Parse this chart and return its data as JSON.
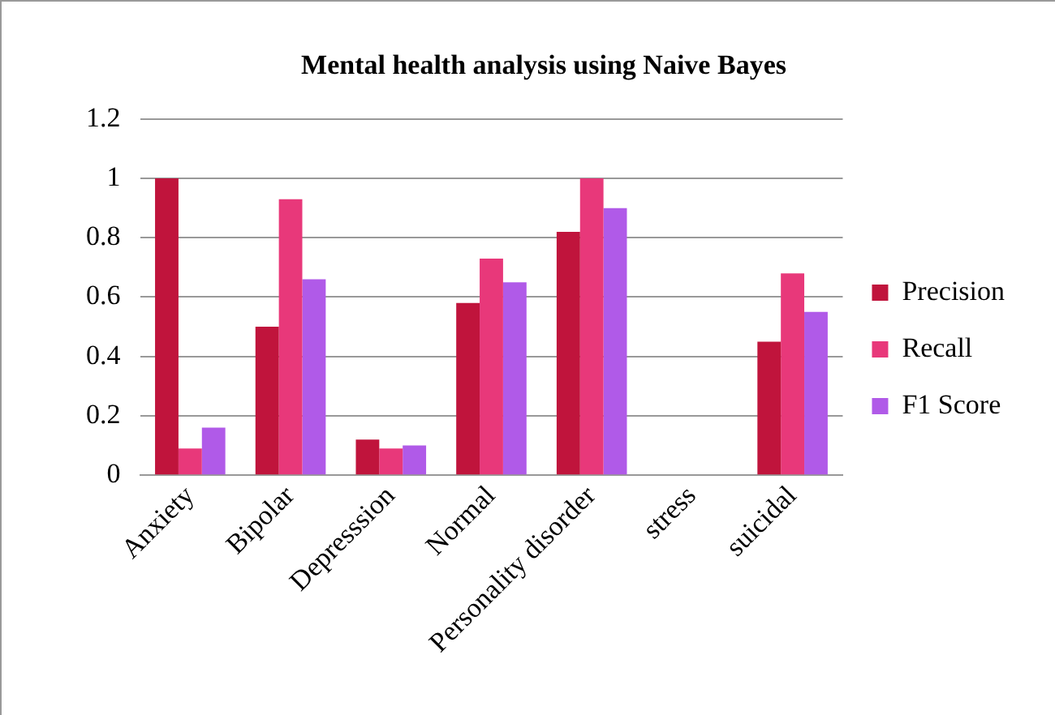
{
  "chart_data": {
    "type": "bar",
    "title": "Mental health analysis using Naive Bayes",
    "categories": [
      "Anxiety",
      "Bipolar",
      "Depresssion",
      "Normal",
      "Personality disorder",
      "stress",
      "suicidal"
    ],
    "series": [
      {
        "name": "Precision",
        "color": "#c0143c",
        "values": [
          1.0,
          0.5,
          0.12,
          0.58,
          0.82,
          0,
          0.45
        ]
      },
      {
        "name": "Recall",
        "color": "#e8387a",
        "values": [
          0.09,
          0.93,
          0.09,
          0.73,
          1.0,
          0,
          0.68
        ]
      },
      {
        "name": "F1 Score",
        "color": "#b05ae8",
        "values": [
          0.16,
          0.66,
          0.1,
          0.65,
          0.9,
          0,
          0.55
        ]
      }
    ],
    "ylim": [
      0,
      1.2
    ],
    "yticks": [
      0,
      0.2,
      0.4,
      0.6,
      0.8,
      1,
      1.2
    ],
    "grid": "y",
    "legend": "right"
  }
}
